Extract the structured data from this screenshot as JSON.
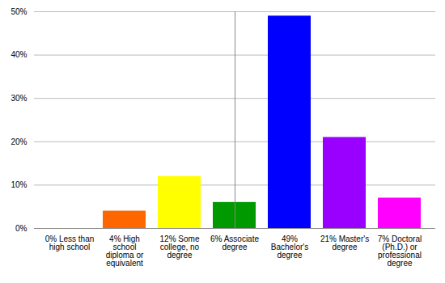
{
  "chart_data": {
    "type": "bar",
    "categories": [
      "0% Less than high school",
      "4% High school diploma or equivalent",
      "12% Some college, no degree",
      "6% Associate degree",
      "49% Bachelor's degree",
      "21% Master's degree",
      "7% Doctoral (Ph.D.) or professional degree"
    ],
    "values": [
      0,
      4,
      12,
      6,
      49,
      21,
      7
    ],
    "colors": [
      "#ff0000",
      "#ff6600",
      "#ffff00",
      "#009900",
      "#0000ff",
      "#9900ff",
      "#ff00ff"
    ],
    "ylim": [
      0,
      50
    ],
    "yticks": [
      {
        "value": 0,
        "label": "0%"
      },
      {
        "value": 10,
        "label": "10%"
      },
      {
        "value": 20,
        "label": "20%"
      },
      {
        "value": 30,
        "label": "30%"
      },
      {
        "value": 40,
        "label": "40%"
      },
      {
        "value": 50,
        "label": "50%"
      }
    ],
    "grid": true
  }
}
